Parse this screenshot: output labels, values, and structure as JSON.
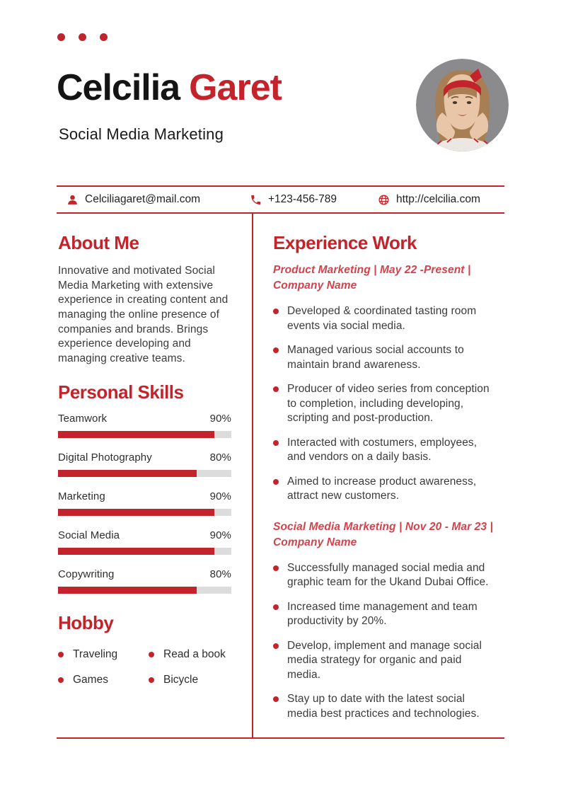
{
  "colors": {
    "accent": "#c3242c",
    "accent_light": "#d2434c",
    "track": "#dcdcdc"
  },
  "header": {
    "first_name": "Celcilia",
    "last_name": "Garet",
    "subtitle": "Social Media Marketing"
  },
  "contact": {
    "email": "Celciliagaret@mail.com",
    "phone": "+123-456-789",
    "website": "http://celcilia.com"
  },
  "about": {
    "title": "About Me",
    "text": "Innovative and motivated Social Media Marketing with extensive experience in creating content and managing the online presence of companies and brands. Brings experience developing and managing creative teams."
  },
  "skills": {
    "title": "Personal Skills",
    "items": [
      {
        "label": "Teamwork",
        "value": "90%",
        "percent": 90
      },
      {
        "label": "Digital Photography",
        "value": "80%",
        "percent": 80
      },
      {
        "label": "Marketing",
        "value": "90%",
        "percent": 90
      },
      {
        "label": "Social Media",
        "value": "90%",
        "percent": 90
      },
      {
        "label": "Copywriting",
        "value": "80%",
        "percent": 80
      }
    ]
  },
  "hobby": {
    "title": "Hobby",
    "items": [
      "Traveling",
      "Read a book",
      "Games",
      "Bicycle"
    ]
  },
  "experience": {
    "title": "Experience Work",
    "jobs": [
      {
        "heading": "Product Marketing | May 22 -Present | Company Name",
        "bullets": [
          "Developed & coordinated tasting room events via social media.",
          "Managed various social accounts to maintain brand awareness.",
          "Producer of video series from conception to completion, including developing, scripting and post-production.",
          "Interacted with costumers, employees, and vendors on a daily basis.",
          "Aimed to increase product awareness, attract new customers."
        ]
      },
      {
        "heading": "Social Media Marketing | Nov 20 - Mar 23 | Company Name",
        "bullets": [
          "Successfully managed social media and graphic team for the Ukand Dubai Office.",
          "Increased time management and team productivity by 20%.",
          "Develop, implement and manage social media strategy for organic and paid media.",
          "Stay up to date with the latest social media best practices and technologies."
        ]
      }
    ]
  }
}
